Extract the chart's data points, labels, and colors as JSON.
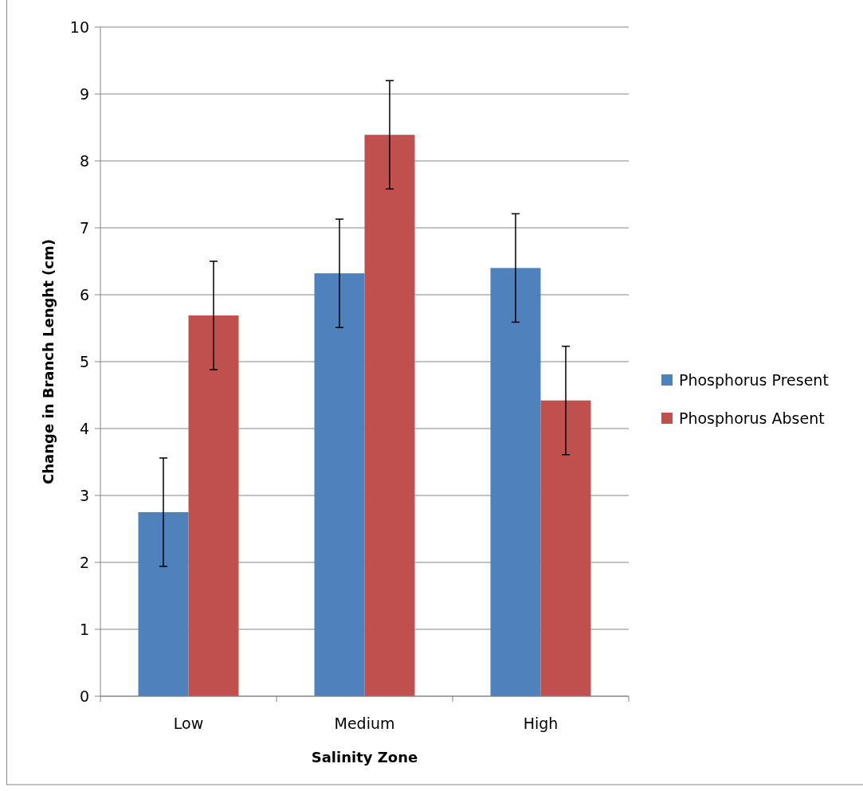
{
  "chart_data": {
    "type": "bar",
    "xlabel": "Salinity Zone",
    "ylabel": "Change in Branch Lenght (cm)",
    "categories": [
      "Low",
      "Medium",
      "High"
    ],
    "series": [
      {
        "name": "Phosphorus Present",
        "color": "#4f81bd",
        "values": [
          2.75,
          6.32,
          6.4
        ],
        "errors": [
          0.81,
          0.81,
          0.81
        ]
      },
      {
        "name": "Phosphorus Absent",
        "color": "#c0504d",
        "values": [
          5.69,
          8.39,
          4.42
        ],
        "errors": [
          0.81,
          0.81,
          0.81
        ]
      }
    ],
    "ylim": [
      0,
      10
    ],
    "yticks": [
      0,
      1,
      2,
      3,
      4,
      5,
      6,
      7,
      8,
      9,
      10
    ],
    "grid": "y",
    "legend": "right"
  }
}
